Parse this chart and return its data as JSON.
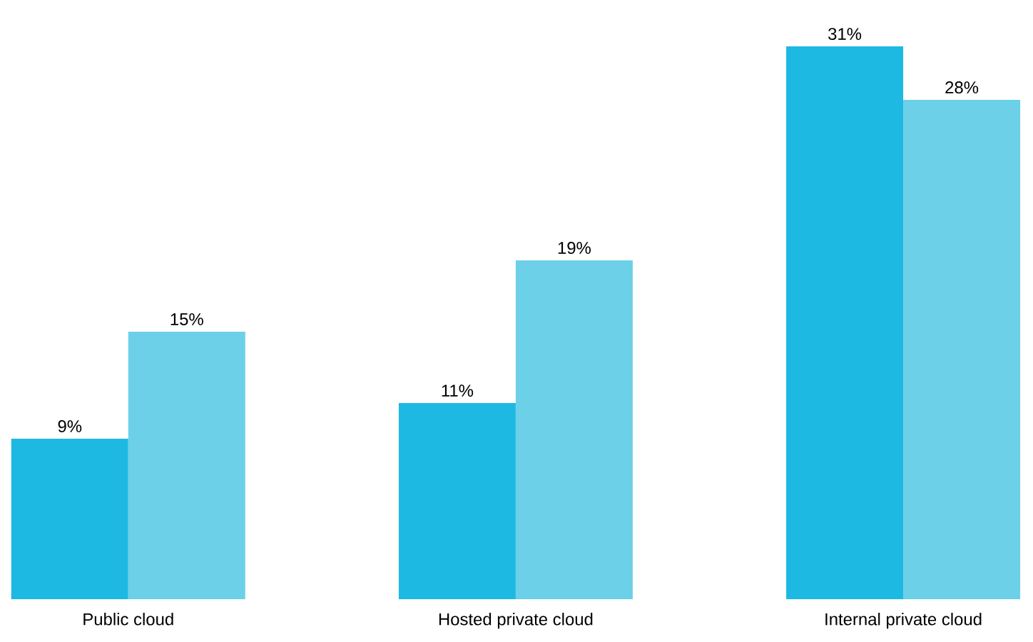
{
  "chart_data": {
    "type": "bar",
    "categories": [
      "Public cloud",
      "Hosted private cloud",
      "Internal private cloud"
    ],
    "series": [
      {
        "color": "#1db9e2",
        "values": [
          9,
          11,
          31
        ],
        "value_labels": [
          "9%",
          "11%",
          "31%"
        ]
      },
      {
        "color": "#6cd0e9",
        "values": [
          15,
          19,
          28
        ],
        "value_labels": [
          "15%",
          "19%",
          "28%"
        ]
      }
    ]
  }
}
